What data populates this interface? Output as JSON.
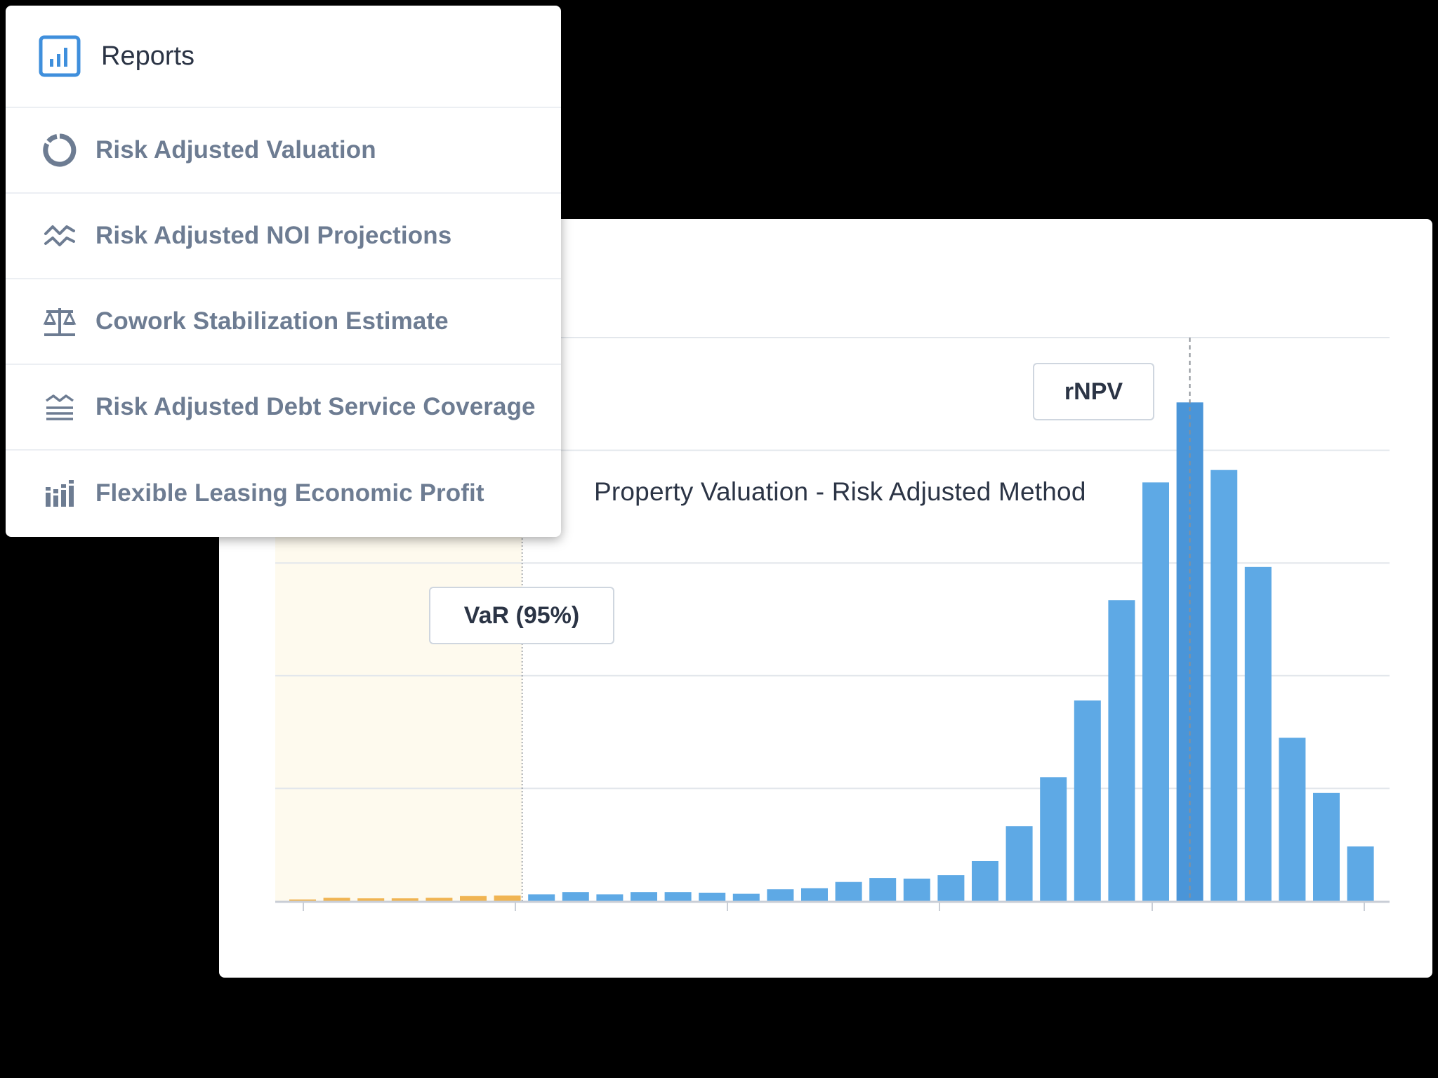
{
  "colors": {
    "blue_bar": "#5ea9e5",
    "blue_bar_highlight": "#4a95d8",
    "orange_bar": "#f0b452",
    "var_region": "#fefaee",
    "icon_accent": "#3f8fdc",
    "menu_text": "#6d7c92",
    "title_text": "#2b3445"
  },
  "menu": {
    "header": {
      "icon": "bar-chart-icon",
      "title": "Reports"
    },
    "items": [
      {
        "icon": "donut-chart-icon",
        "label": "Risk Adjusted Valuation"
      },
      {
        "icon": "trend-lines-icon",
        "label": "Risk Adjusted NOI Projections"
      },
      {
        "icon": "balance-scale-icon",
        "label": "Cowork Stabilization Estimate"
      },
      {
        "icon": "water-level-icon",
        "label": "Risk Adjusted Debt Service Coverage"
      },
      {
        "icon": "grouped-bars-icon",
        "label": "Flexible Leasing Economic Profit"
      }
    ]
  },
  "chart": {
    "title": "Property Valuation - Risk Adjusted Method",
    "var_label": "VaR (95%)",
    "rnpv_label": "rNPV"
  },
  "chart_data": {
    "type": "bar",
    "title": "Property Valuation - Risk Adjusted Method",
    "xlabel": "",
    "ylabel": "",
    "ylim": [
      0,
      100
    ],
    "grid": true,
    "values": [
      0.3,
      0.6,
      0.5,
      0.5,
      0.6,
      0.9,
      1.0,
      1.2,
      1.6,
      1.2,
      1.6,
      1.6,
      1.5,
      1.3,
      2.1,
      2.3,
      3.4,
      4.1,
      4.0,
      4.6,
      7.1,
      13.3,
      22.0,
      35.6,
      53.4,
      74.3,
      88.5,
      76.5,
      59.3,
      29.0,
      19.2,
      9.7
    ],
    "var_threshold_index": 6,
    "rnpv_index": 26,
    "annotations": [
      "VaR (95%)",
      "rNPV"
    ]
  }
}
